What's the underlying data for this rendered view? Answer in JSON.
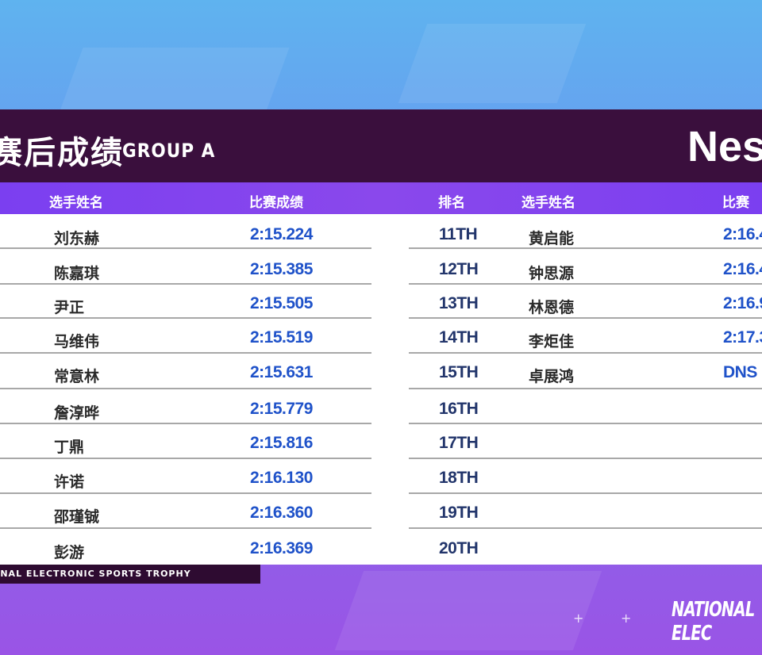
{
  "header": {
    "title_cn": "赛后成绩",
    "group": "GROUP A",
    "brand": "Nes"
  },
  "columns": {
    "left": {
      "name": "选手姓名",
      "result": "比赛成绩"
    },
    "right": {
      "rank": "排名",
      "name": "选手姓名",
      "result": "比赛成"
    }
  },
  "left_rows": [
    {
      "name": "刘东赫",
      "result": "2:15.224"
    },
    {
      "name": "陈嘉琪",
      "result": "2:15.385"
    },
    {
      "name": "尹正",
      "result": "2:15.505"
    },
    {
      "name": "马维伟",
      "result": "2:15.519"
    },
    {
      "name": "常意林",
      "result": "2:15.631"
    },
    {
      "name": "詹淳晔",
      "result": "2:15.779"
    },
    {
      "name": "丁鼎",
      "result": "2:15.816"
    },
    {
      "name": "许诺",
      "result": "2:16.130"
    },
    {
      "name": "邵瑾铖",
      "result": "2:16.360"
    },
    {
      "name": "彭游",
      "result": "2:16.369"
    }
  ],
  "right_rows": [
    {
      "rank": "11TH",
      "name": "黄启能",
      "result": "2:16.4"
    },
    {
      "rank": "12TH",
      "name": "钟思源",
      "result": "2:16.4"
    },
    {
      "rank": "13TH",
      "name": "林恩德",
      "result": "2:16.9"
    },
    {
      "rank": "14TH",
      "name": "李炬佳",
      "result": "2:17.3"
    },
    {
      "rank": "15TH",
      "name": "卓展鸿",
      "result": "DNS"
    },
    {
      "rank": "16TH",
      "name": "",
      "result": ""
    },
    {
      "rank": "17TH",
      "name": "",
      "result": ""
    },
    {
      "rank": "18TH",
      "name": "",
      "result": ""
    },
    {
      "rank": "19TH",
      "name": "",
      "result": ""
    },
    {
      "rank": "20TH",
      "name": "",
      "result": ""
    }
  ],
  "footer": {
    "strip_text": "ONAL ELECTRONIC SPORTS TROPHY",
    "watermark": "NATIONAL ELEC"
  }
}
